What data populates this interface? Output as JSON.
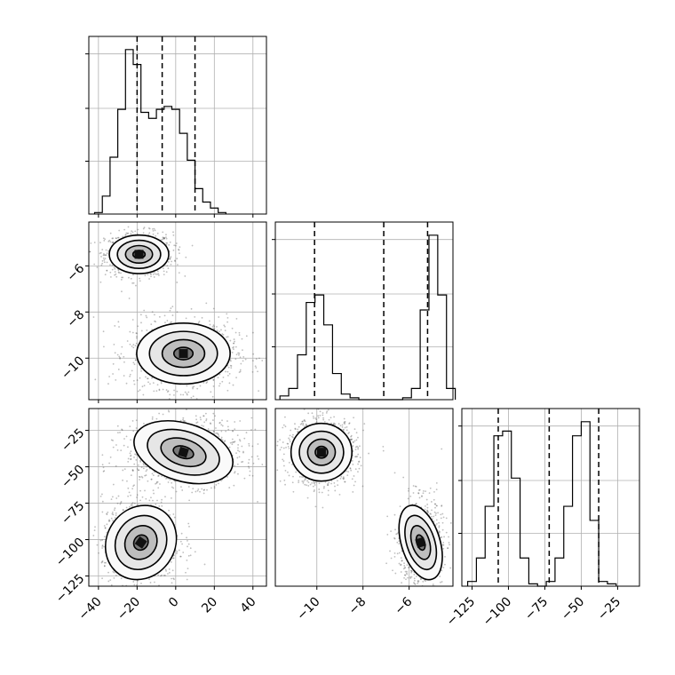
{
  "chart_data": [
    {
      "type": "histogram",
      "panel": "hist-param-1",
      "x_ticks": [
        -40,
        -20,
        0,
        20,
        40
      ],
      "xlim": [
        -45,
        47
      ],
      "bin_start": -42,
      "bin_width": 4,
      "counts": [
        0.05,
        0.6,
        1.9,
        3.5,
        5.5,
        5.0,
        3.4,
        3.2,
        3.5,
        3.6,
        3.5,
        2.7,
        1.8,
        0.85,
        0.4,
        0.2,
        0.05
      ],
      "quantiles": [
        -20,
        -7,
        10
      ]
    },
    {
      "type": "scatter-density",
      "panel": "param-1-vs-param-2",
      "x_ticks": [
        -40,
        -20,
        0,
        20,
        40
      ],
      "y_ticks": [
        -6,
        -8,
        -10
      ],
      "xlim": [
        -45,
        47
      ],
      "ylim": [
        -11.8,
        -4.1
      ],
      "clusters": [
        {
          "cx": -19,
          "cy": -5.5,
          "sx": 7,
          "sy": 0.38,
          "n": 900
        },
        {
          "cx": 4,
          "cy": -9.8,
          "sx": 11,
          "sy": 0.6,
          "n": 1100
        }
      ]
    },
    {
      "type": "scatter-density",
      "panel": "param-1-vs-param-3",
      "x_ticks": [
        -40,
        -20,
        0,
        20,
        40
      ],
      "x_tick_labels": [
        "−40",
        "−20",
        "0",
        "20",
        "40"
      ],
      "y_ticks": [
        -25,
        -50,
        -75,
        -100,
        -125
      ],
      "y_tick_labels": [
        "−25",
        "−50",
        "−75",
        "−100",
        "−125"
      ],
      "xlim": [
        -45,
        47
      ],
      "ylim": [
        -132,
        -10
      ],
      "clusters": [
        {
          "cx": -18,
          "cy": -102,
          "sx": 8,
          "sy": 12,
          "n": 900,
          "rot": -0.6
        },
        {
          "cx": 4,
          "cy": -40,
          "sx": 12,
          "sy": 9,
          "n": 1100,
          "rot": -0.3
        }
      ]
    },
    {
      "type": "histogram",
      "panel": "hist-param-2",
      "xlim": [
        -11.8,
        -4.1
      ],
      "bin_start": -11.6,
      "bin_width": 0.38,
      "counts": [
        0.1,
        0.3,
        1.2,
        2.6,
        2.8,
        2.0,
        0.7,
        0.15,
        0.05,
        0,
        0,
        0,
        0,
        0,
        0.05,
        0.3,
        2.4,
        4.4,
        2.8,
        0.3
      ],
      "quantiles": [
        -10.1,
        -7.1,
        -5.2
      ]
    },
    {
      "type": "scatter-density",
      "panel": "param-2-vs-param-3",
      "x_ticks": [
        -10,
        -8,
        -6
      ],
      "x_tick_labels": [
        "−10",
        "−8",
        "−6"
      ],
      "xlim": [
        -11.8,
        -4.1
      ],
      "ylim": [
        -132,
        -10
      ],
      "clusters": [
        {
          "cx": -9.8,
          "cy": -40,
          "sx": 0.6,
          "sy": 9,
          "n": 1100
        },
        {
          "cx": -5.5,
          "cy": -102,
          "sx": 0.38,
          "sy": 12,
          "n": 900,
          "rot": 0.3
        }
      ]
    },
    {
      "type": "histogram",
      "panel": "hist-param-3",
      "x_ticks": [
        -125,
        -100,
        -75,
        -50,
        -25
      ],
      "x_tick_labels": [
        "−125",
        "−100",
        "−75",
        "−50",
        "−25"
      ],
      "xlim": [
        -132,
        -10
      ],
      "bin_start": -128,
      "bin_width": 6,
      "counts": [
        0.1,
        0.6,
        1.7,
        3.2,
        3.3,
        2.3,
        0.6,
        0.05,
        0,
        0.1,
        0.6,
        1.7,
        3.2,
        3.5,
        1.4,
        0.1,
        0.05
      ],
      "quantiles": [
        -107,
        -72,
        -38
      ]
    }
  ]
}
